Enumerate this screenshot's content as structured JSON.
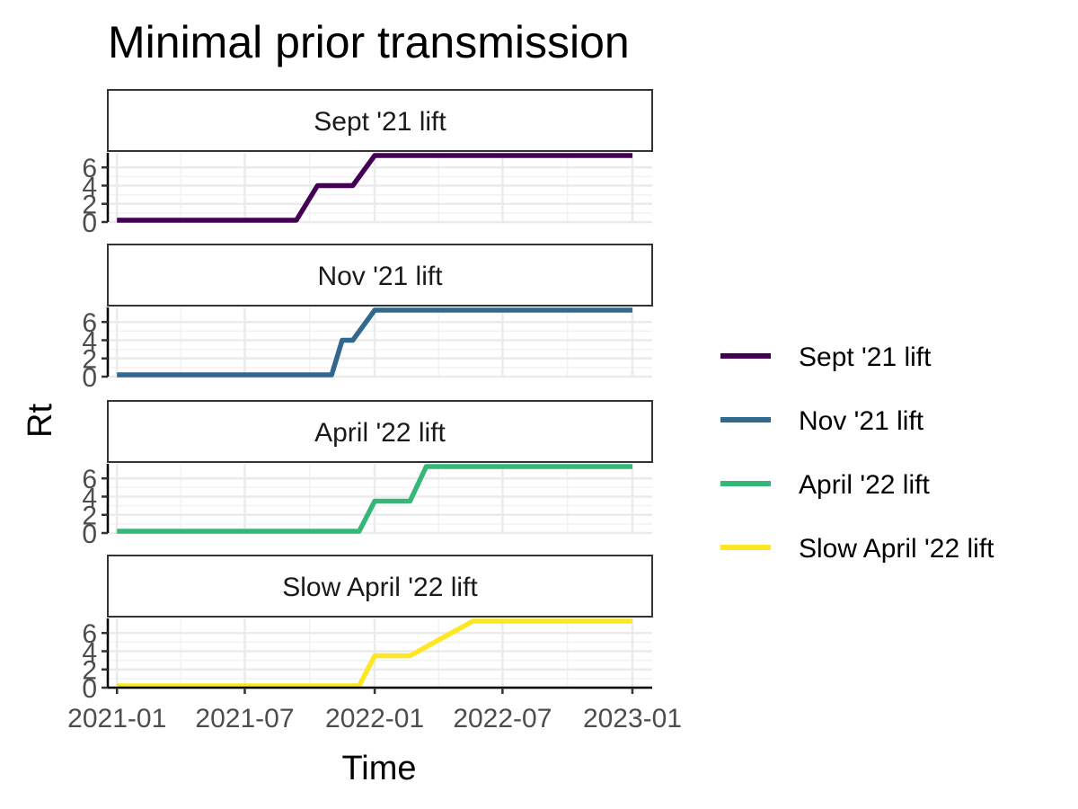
{
  "chart_data": {
    "type": "line",
    "title": "Minimal prior transmission",
    "xlabel": "Time",
    "ylabel": "Rt",
    "x_ticks": [
      "2021-01",
      "2021-07",
      "2022-01",
      "2022-07",
      "2023-01"
    ],
    "xlim": [
      "2020-12-19",
      "2023-01-29"
    ],
    "y_ticks": [
      0,
      2,
      4,
      6
    ],
    "ylim": [
      0,
      7.6
    ],
    "grid": true,
    "legend_position": "right",
    "facet_layout": "stacked vertically, shared x axis",
    "series": [
      {
        "name": "Sept '21 lift",
        "color": "#440154",
        "points": [
          {
            "x": "2021-01-01",
            "y": 0.2
          },
          {
            "x": "2021-09-12",
            "y": 0.2
          },
          {
            "x": "2021-10-12",
            "y": 4.0
          },
          {
            "x": "2021-12-01",
            "y": 4.0
          },
          {
            "x": "2022-01-01",
            "y": 7.3
          },
          {
            "x": "2023-01-01",
            "y": 7.3
          }
        ]
      },
      {
        "name": "Nov '21 lift",
        "color": "#31688E",
        "points": [
          {
            "x": "2021-01-01",
            "y": 0.2
          },
          {
            "x": "2021-11-01",
            "y": 0.2
          },
          {
            "x": "2021-11-16",
            "y": 4.0
          },
          {
            "x": "2021-12-01",
            "y": 4.0
          },
          {
            "x": "2022-01-01",
            "y": 7.3
          },
          {
            "x": "2023-01-01",
            "y": 7.3
          }
        ]
      },
      {
        "name": "April '22 lift",
        "color": "#35B779",
        "points": [
          {
            "x": "2021-01-01",
            "y": 0.2
          },
          {
            "x": "2021-12-10",
            "y": 0.2
          },
          {
            "x": "2022-01-01",
            "y": 3.5
          },
          {
            "x": "2022-02-20",
            "y": 3.5
          },
          {
            "x": "2022-03-15",
            "y": 7.3
          },
          {
            "x": "2023-01-01",
            "y": 7.3
          }
        ]
      },
      {
        "name": "Slow April '22 lift",
        "color": "#FDE725",
        "points": [
          {
            "x": "2021-01-01",
            "y": 0.2
          },
          {
            "x": "2021-12-10",
            "y": 0.2
          },
          {
            "x": "2022-01-01",
            "y": 3.5
          },
          {
            "x": "2022-02-20",
            "y": 3.5
          },
          {
            "x": "2022-05-20",
            "y": 7.3
          },
          {
            "x": "2023-01-01",
            "y": 7.3
          }
        ]
      }
    ]
  }
}
